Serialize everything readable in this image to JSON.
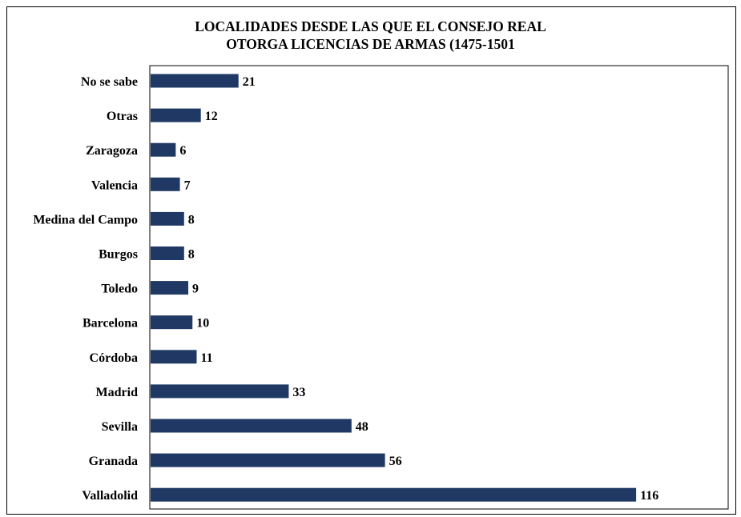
{
  "chart_data": {
    "type": "bar",
    "orientation": "horizontal",
    "title_lines": [
      "LOCALIDADES DESDE LAS QUE EL CONSEJO REAL",
      "OTORGA LICENCIAS DE ARMAS (1475-1501"
    ],
    "categories": [
      "No se sabe",
      "Otras",
      "Zaragoza",
      "Valencia",
      "Medina del Campo",
      "Burgos",
      "Toledo",
      "Barcelona",
      "Córdoba",
      "Madrid",
      "Sevilla",
      "Granada",
      "Valladolid"
    ],
    "values": [
      21,
      12,
      6,
      7,
      8,
      8,
      9,
      10,
      11,
      33,
      48,
      56,
      116
    ],
    "xlim": [
      0,
      130
    ],
    "grid": false,
    "legend": "none",
    "bar_color": "#1f3864",
    "data_labels": true
  }
}
